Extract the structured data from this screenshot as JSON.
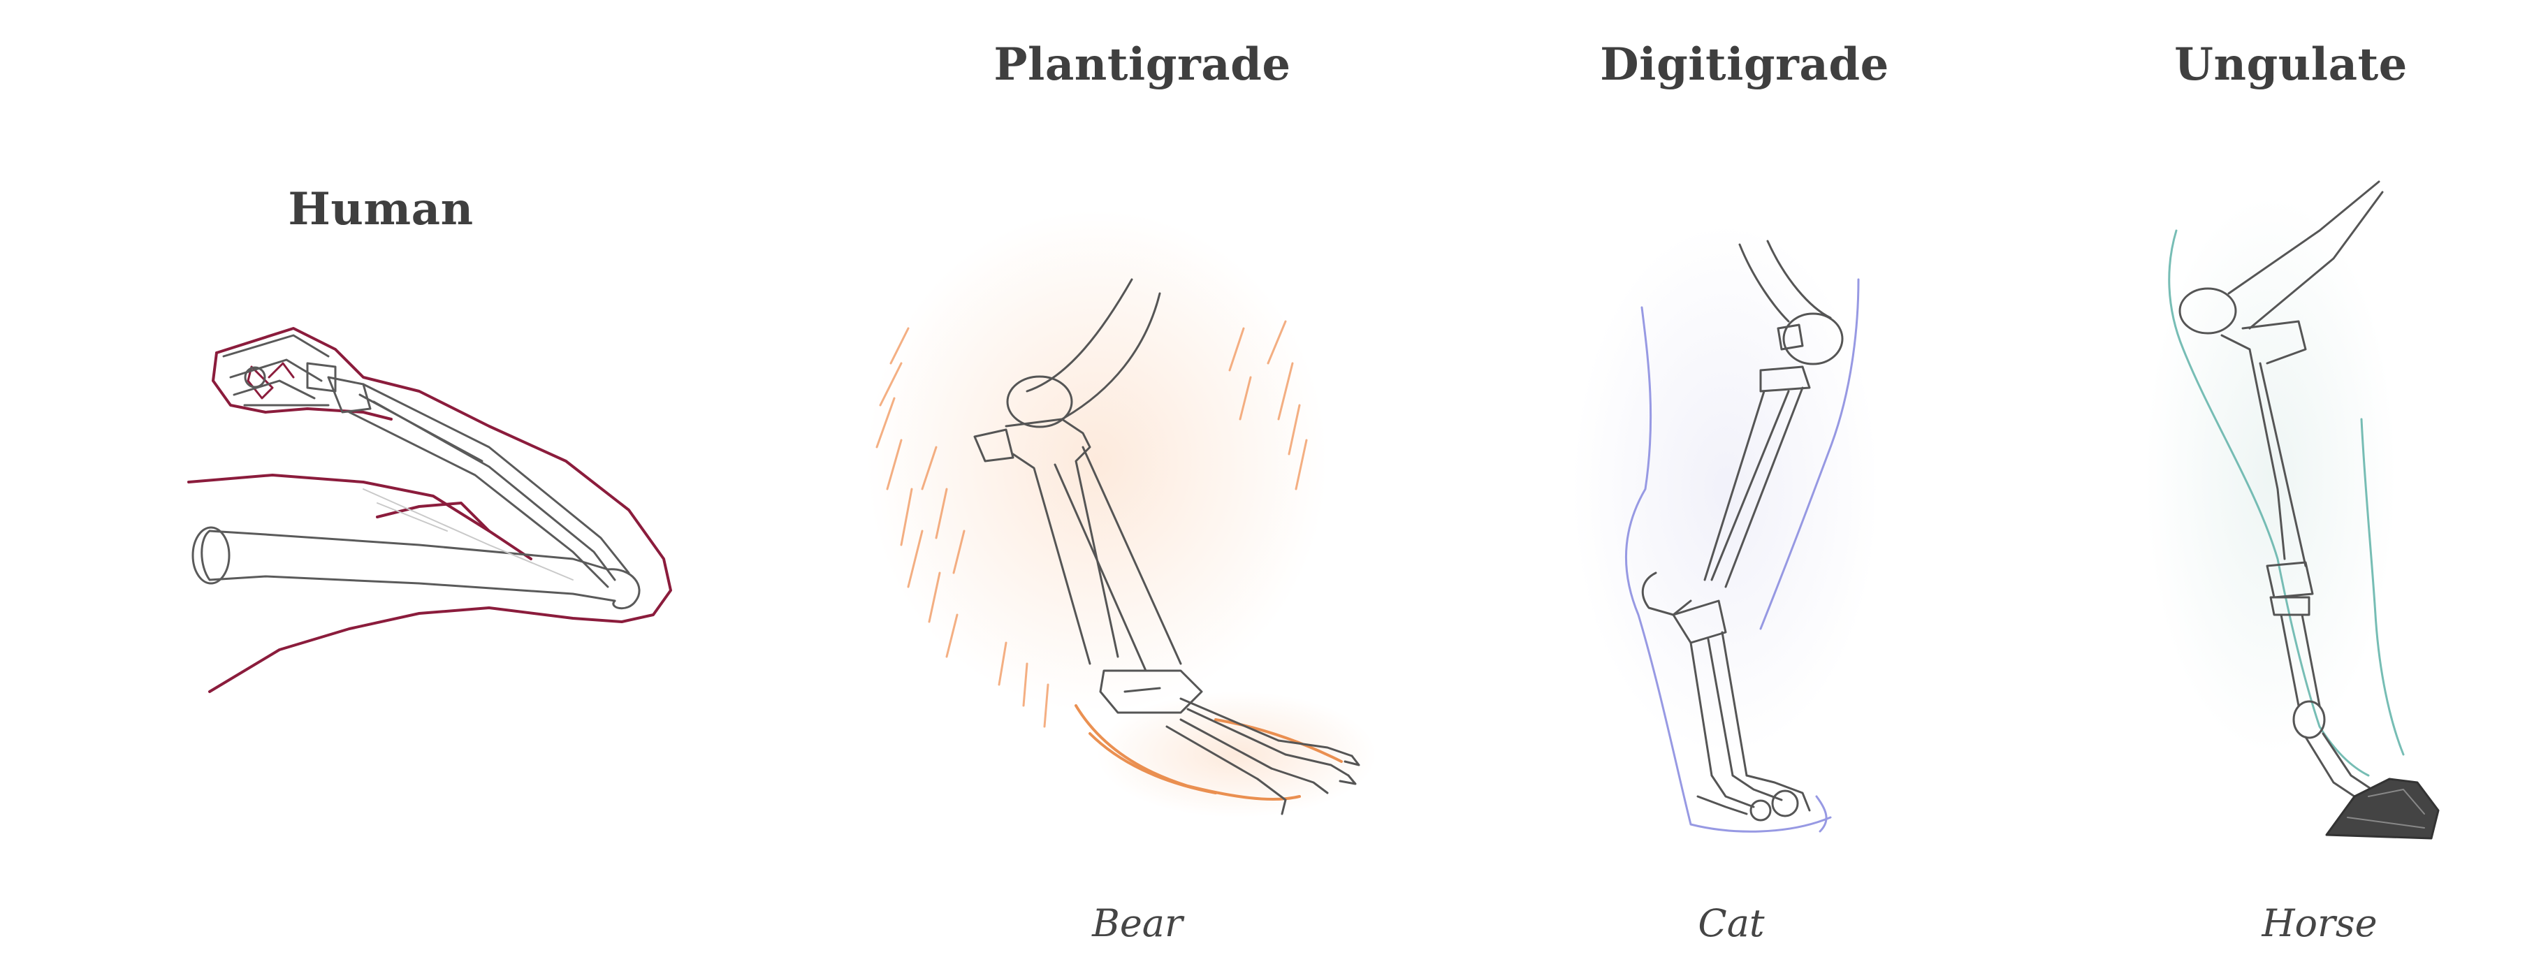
{
  "headings": {
    "human": "Human",
    "plantigrade": "Plantigrade",
    "digitigrade": "Digitigrade",
    "ungulate": "Ungulate"
  },
  "captions": {
    "bear": "Bear",
    "cat": "Cat",
    "horse": "Horse"
  },
  "colors": {
    "text": "#3f3f3f",
    "bone": "#5a5a5a",
    "human_outline": "#8b1c3c",
    "bear_fur": "#f0945a",
    "cat_outline": "#8c8ee0",
    "horse_outline": "#5fb2a8",
    "hoof": "#333333"
  }
}
